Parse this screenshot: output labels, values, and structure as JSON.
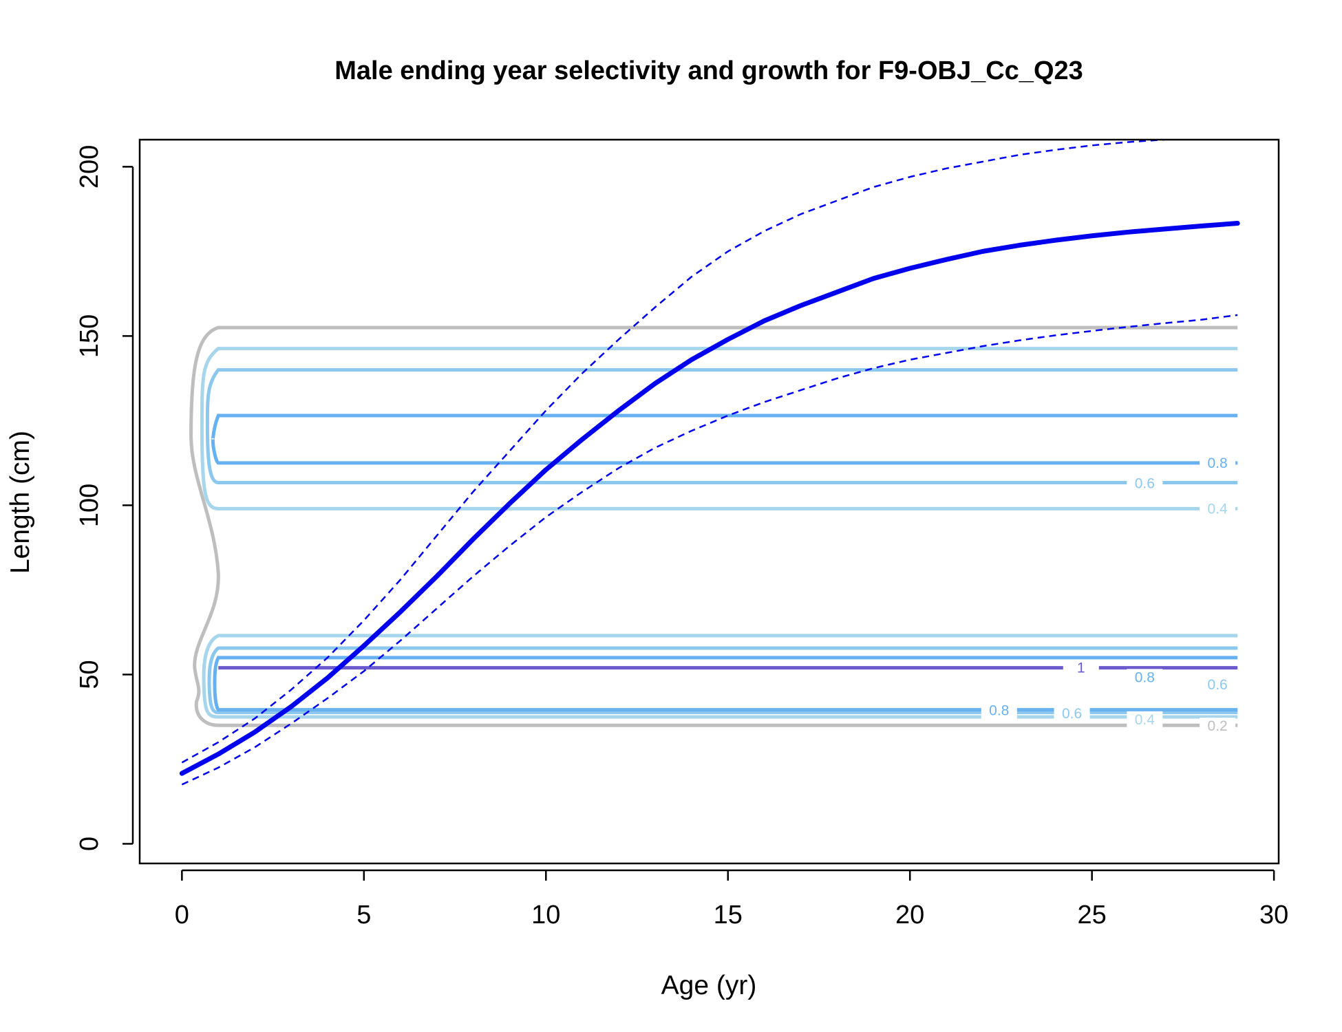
{
  "chart_data": {
    "type": "line",
    "title": "Male ending year selectivity and growth for F9-OBJ_Cc_Q23",
    "xlabel": "Age (yr)",
    "ylabel": "Length (cm)",
    "xlim": [
      -1.16,
      30.13
    ],
    "ylim": [
      -5.8,
      208
    ],
    "xticks": [
      "0",
      "5",
      "10",
      "15",
      "20",
      "25",
      "30"
    ],
    "xtick_values": [
      0,
      5,
      10,
      15,
      20,
      25,
      30
    ],
    "yticks": [
      "0",
      "50",
      "100",
      "150",
      "200"
    ],
    "ytick_values": [
      0,
      50,
      100,
      150,
      200
    ],
    "grid": false,
    "legend": "none",
    "growth": {
      "color": "#0000ee",
      "mean_length": [
        [
          0,
          20.8
        ],
        [
          1,
          26.5
        ],
        [
          2,
          33
        ],
        [
          3,
          40.5
        ],
        [
          4,
          49
        ],
        [
          5,
          58.5
        ],
        [
          6,
          68.5
        ],
        [
          7,
          79
        ],
        [
          8,
          90
        ],
        [
          9,
          100.5
        ],
        [
          10,
          110.5
        ],
        [
          11,
          119.5
        ],
        [
          12,
          128
        ],
        [
          13,
          136
        ],
        [
          14,
          143
        ],
        [
          15,
          149
        ],
        [
          16,
          154.5
        ],
        [
          17,
          159
        ],
        [
          18,
          163
        ],
        [
          19,
          167
        ],
        [
          20,
          170
        ],
        [
          21,
          172.6
        ],
        [
          22,
          175
        ],
        [
          23,
          176.8
        ],
        [
          24,
          178.3
        ],
        [
          25,
          179.6
        ],
        [
          26,
          180.7
        ],
        [
          27,
          181.6
        ],
        [
          28,
          182.5
        ],
        [
          29,
          183.3
        ]
      ],
      "upper_interval": [
        [
          0,
          24
        ],
        [
          1,
          30
        ],
        [
          2,
          37
        ],
        [
          3,
          45.5
        ],
        [
          4,
          55
        ],
        [
          5,
          66
        ],
        [
          6,
          78
        ],
        [
          7,
          91
        ],
        [
          8,
          104
        ],
        [
          9,
          116
        ],
        [
          10,
          128
        ],
        [
          11,
          139
        ],
        [
          12,
          149
        ],
        [
          13,
          158.5
        ],
        [
          14,
          167.5
        ],
        [
          15,
          175
        ],
        [
          16,
          181
        ],
        [
          17,
          186
        ],
        [
          18,
          190
        ],
        [
          19,
          194
        ],
        [
          20,
          197
        ],
        [
          21,
          199.5
        ],
        [
          22,
          201.5
        ],
        [
          23,
          203.5
        ],
        [
          24,
          205
        ],
        [
          25,
          206.3
        ],
        [
          26,
          207.3
        ],
        [
          27,
          208
        ]
      ],
      "lower_interval": [
        [
          0,
          17.5
        ],
        [
          1,
          22.5
        ],
        [
          2,
          28.5
        ],
        [
          3,
          35.5
        ],
        [
          4,
          43
        ],
        [
          5,
          51
        ],
        [
          6,
          60
        ],
        [
          7,
          69.5
        ],
        [
          8,
          79
        ],
        [
          9,
          88
        ],
        [
          10,
          96.5
        ],
        [
          11,
          104
        ],
        [
          12,
          111
        ],
        [
          13,
          117
        ],
        [
          14,
          122
        ],
        [
          15,
          126.5
        ],
        [
          16,
          130.5
        ],
        [
          17,
          134
        ],
        [
          18,
          137.5
        ],
        [
          19,
          140.5
        ],
        [
          20,
          143
        ],
        [
          21,
          145
        ],
        [
          22,
          147
        ],
        [
          23,
          148.7
        ],
        [
          24,
          150.2
        ],
        [
          25,
          151.5
        ],
        [
          26,
          152.7
        ],
        [
          27,
          153.8
        ],
        [
          28,
          154.8
        ],
        [
          29,
          156.2
        ]
      ]
    },
    "selectivity_contours": [
      {
        "level": "0.2",
        "color": "#bebebe",
        "band": [
          35,
          152.5
        ],
        "bulge": true
      },
      {
        "level": "0.4",
        "color": "#a6d5ec",
        "band": [
          37.5,
          146.3
        ],
        "inner": [
          61.5,
          99
        ]
      },
      {
        "level": "0.6",
        "color": "#8cc8ee",
        "band": [
          38.8,
          140
        ],
        "inner": [
          57.8,
          106.7
        ]
      },
      {
        "level": "0.8",
        "color": "#67b1f0",
        "band": [
          39.6,
          126.5
        ],
        "inner": [
          55,
          112.5
        ]
      },
      {
        "level": "1",
        "color": "#6a5acd",
        "band": [
          52,
          52
        ]
      }
    ],
    "contour_labels": [
      {
        "text": "0.8",
        "x": 28.45,
        "y": 112.5,
        "color": "#67b1f0"
      },
      {
        "text": "0.6",
        "x": 26.45,
        "y": 106.5,
        "color": "#8cc8ee"
      },
      {
        "text": "0.4",
        "x": 28.45,
        "y": 99,
        "color": "#a6d5ec"
      },
      {
        "text": "1",
        "x": 24.7,
        "y": 52,
        "color": "#6a5acd"
      },
      {
        "text": "0.8",
        "x": 26.45,
        "y": 49.2,
        "color": "#67b1f0"
      },
      {
        "text": "0.6",
        "x": 28.45,
        "y": 47,
        "color": "#8cc8ee"
      },
      {
        "text": "0.8",
        "x": 22.45,
        "y": 39.4,
        "color": "#67b1f0"
      },
      {
        "text": "0.6",
        "x": 24.45,
        "y": 38.5,
        "color": "#8cc8ee"
      },
      {
        "text": "0.4",
        "x": 26.45,
        "y": 36.7,
        "color": "#a6d5ec"
      },
      {
        "text": "0.2",
        "x": 28.45,
        "y": 34.8,
        "color": "#bebebe"
      }
    ]
  }
}
